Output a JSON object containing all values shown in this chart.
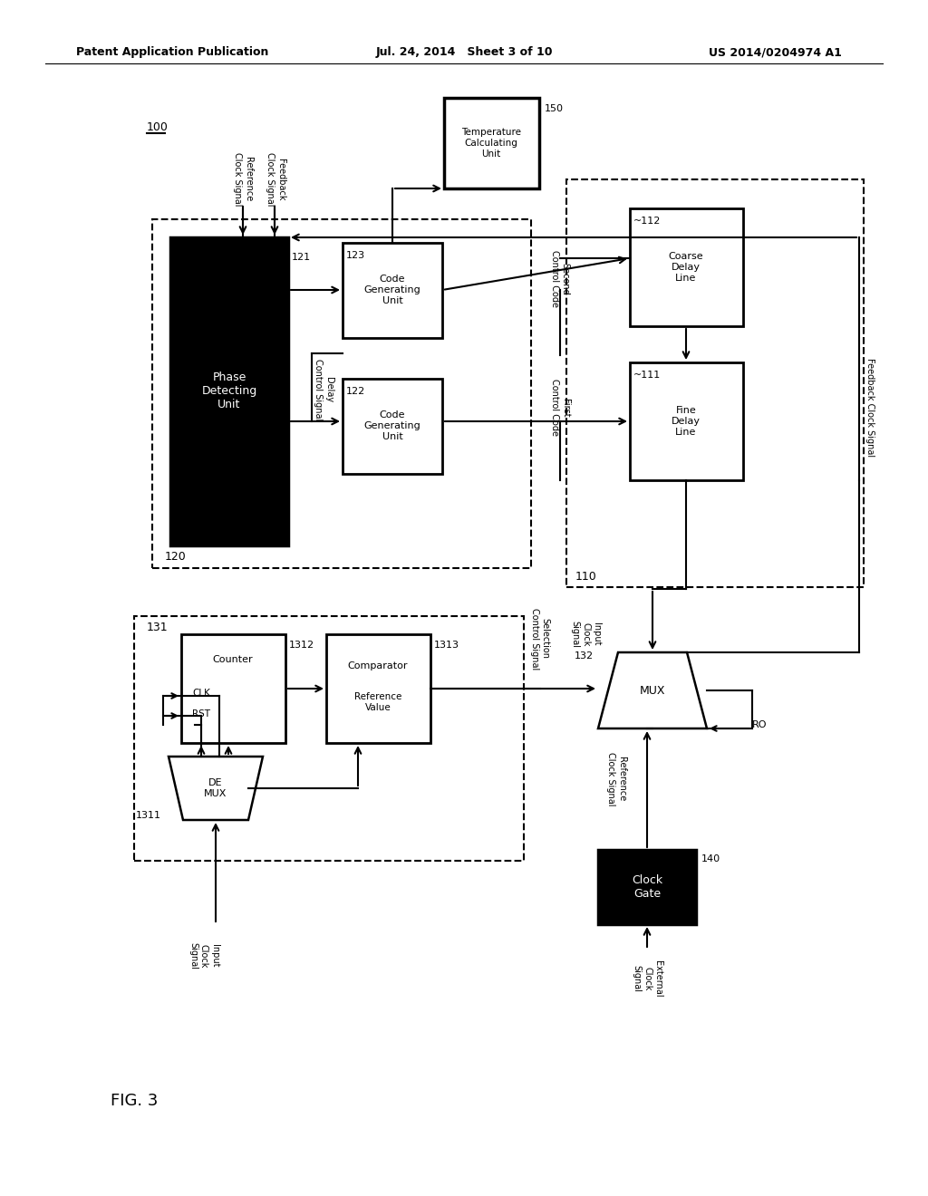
{
  "bg": "#ffffff",
  "lc": "#000000",
  "header": {
    "left": "Patent Application Publication",
    "center": "Jul. 24, 2014  Sheet 3 of 10",
    "right": "US 2014/0204974 A1"
  }
}
